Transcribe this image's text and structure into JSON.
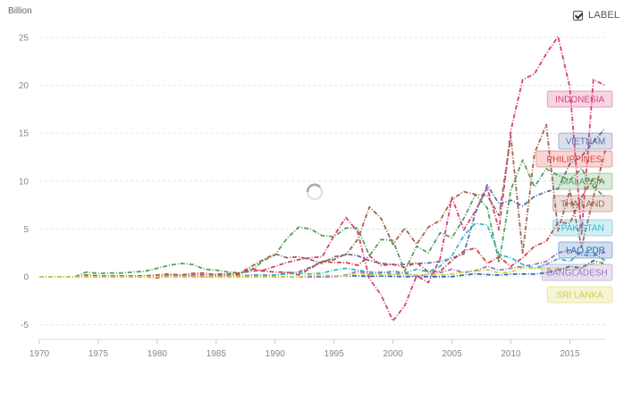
{
  "toggle": {
    "label": "LABEL",
    "checked": true
  },
  "chart_data": {
    "type": "line",
    "ylabel": "Billion",
    "xlim": [
      1970,
      2018
    ],
    "ylim": [
      -5,
      25
    ],
    "xticks": [
      1970,
      1975,
      1980,
      1985,
      1990,
      1995,
      2000,
      2005,
      2010,
      2015
    ],
    "yticks": [
      -5,
      0,
      5,
      10,
      15,
      20,
      25
    ],
    "grid": true,
    "legend": "right-end labels",
    "x": [
      1970,
      1971,
      1972,
      1973,
      1974,
      1975,
      1976,
      1977,
      1978,
      1979,
      1980,
      1981,
      1982,
      1983,
      1984,
      1985,
      1986,
      1987,
      1988,
      1989,
      1990,
      1991,
      1992,
      1993,
      1994,
      1995,
      1996,
      1997,
      1998,
      1999,
      2000,
      2001,
      2002,
      2003,
      2004,
      2005,
      2006,
      2007,
      2008,
      2009,
      2010,
      2011,
      2012,
      2013,
      2014,
      2015,
      2016,
      2017,
      2018
    ],
    "series": [
      {
        "name": "INDONESIA",
        "color": "#d6427e",
        "values": [
          0,
          0,
          0,
          0,
          0,
          0,
          0,
          0,
          0,
          0,
          0,
          0.2,
          0.2,
          0.3,
          0.2,
          0.3,
          0.3,
          0.4,
          0.6,
          0.7,
          1.1,
          1.5,
          1.8,
          2.0,
          2.1,
          4.3,
          6.2,
          4.7,
          -0.2,
          -1.9,
          -4.6,
          -3.0,
          0.1,
          -0.6,
          1.9,
          8.3,
          4.9,
          6.9,
          9.3,
          4.9,
          15.3,
          20.6,
          21.2,
          23.3,
          25.1,
          19.8,
          4.5,
          20.6,
          20.0
        ]
      },
      {
        "name": "VIETNAM",
        "color": "#5b6ea8",
        "values": [
          0,
          0,
          0,
          0,
          0,
          0,
          0,
          0,
          0,
          0,
          0,
          0,
          0,
          0,
          0,
          0,
          0,
          0,
          0.1,
          0.1,
          0.2,
          0.4,
          0.5,
          1.0,
          1.6,
          1.8,
          2.4,
          2.2,
          1.7,
          1.4,
          1.3,
          1.3,
          1.4,
          1.45,
          1.6,
          1.95,
          2.4,
          6.7,
          9.6,
          7.6,
          8.0,
          7.4,
          8.4,
          8.9,
          9.2,
          11.8,
          12.6,
          14.1,
          15.5
        ]
      },
      {
        "name": "PHILIPPINES",
        "color": "#d9443e",
        "values": [
          0,
          0,
          0,
          0,
          0,
          0,
          0,
          0,
          0,
          0,
          -0.1,
          0.2,
          0.1,
          0.1,
          0,
          0.1,
          0.1,
          0.3,
          0.9,
          0.6,
          0.5,
          0.5,
          0.2,
          0.9,
          1.6,
          1.5,
          1.5,
          1.2,
          2.2,
          1.2,
          1.3,
          1.0,
          1.5,
          0.5,
          0.6,
          1.7,
          2.7,
          3.0,
          1.4,
          2.1,
          1.1,
          2.0,
          3.2,
          3.7,
          5.7,
          5.6,
          8.3,
          10.3,
          9.9
        ]
      },
      {
        "name": "MALAYSIA",
        "color": "#55a05c",
        "values": [
          0,
          0,
          0,
          0,
          0.5,
          0.35,
          0.4,
          0.4,
          0.5,
          0.6,
          0.9,
          1.2,
          1.4,
          1.3,
          0.8,
          0.7,
          0.5,
          0.4,
          0.7,
          1.7,
          2.3,
          4.0,
          5.2,
          5.0,
          4.3,
          4.2,
          5.1,
          5.1,
          2.2,
          3.9,
          3.8,
          0.6,
          3.2,
          2.5,
          4.6,
          4.1,
          6.1,
          8.6,
          7.2,
          1.5,
          9.1,
          12.2,
          9.4,
          11.3,
          10.6,
          10.1,
          11.3,
          9.4,
          8.3
        ]
      },
      {
        "name": "THAILAND",
        "color": "#a36650",
        "values": [
          0,
          0,
          0,
          0,
          0.2,
          0.1,
          0.1,
          0.1,
          0.1,
          0.1,
          0.2,
          0.3,
          0.2,
          0.35,
          0.4,
          0.2,
          0.3,
          0.4,
          1.1,
          1.8,
          2.4,
          2.0,
          2.1,
          1.8,
          1.4,
          2.1,
          2.3,
          3.9,
          7.3,
          6.1,
          3.4,
          5.1,
          3.4,
          5.2,
          5.9,
          8.1,
          8.9,
          8.6,
          8.5,
          6.4,
          14.7,
          2.5,
          12.9,
          15.9,
          4.8,
          9.0,
          3.1,
          8.3,
          13.2
        ]
      },
      {
        "name": "PAKISTAN",
        "color": "#38b8cc",
        "values": [
          0,
          0,
          0,
          0,
          0,
          0,
          0,
          0,
          0,
          0,
          0,
          0.1,
          0.1,
          0.1,
          0,
          0.1,
          0.1,
          0.1,
          0.2,
          0.2,
          0.2,
          0.3,
          0.4,
          0.3,
          0.4,
          0.7,
          0.9,
          0.7,
          0.5,
          0.5,
          0.3,
          0.4,
          0.8,
          0.5,
          1.1,
          2.2,
          4.3,
          5.6,
          5.4,
          2.3,
          2.0,
          1.3,
          0.9,
          1.3,
          1.9,
          1.6,
          2.6,
          2.5,
          1.7
        ]
      },
      {
        "name": "LAO PDR",
        "color": "#2b6ab2",
        "values": [
          0,
          0,
          0,
          0,
          0,
          0,
          0,
          0,
          0,
          0,
          0,
          0,
          0,
          0,
          0,
          0,
          0,
          0,
          0,
          0,
          0,
          0,
          0,
          0,
          0,
          0.1,
          0.1,
          0.1,
          0.05,
          0.1,
          0.05,
          0.02,
          0.03,
          0.02,
          0.02,
          0.03,
          0.19,
          0.32,
          0.23,
          0.19,
          0.28,
          0.3,
          0.29,
          0.43,
          0.72,
          1.08,
          0.94,
          1.69,
          1.36
        ]
      },
      {
        "name": "BANGLADESH",
        "color": "#9b77c2",
        "values": [
          0,
          0,
          0,
          0,
          0,
          0,
          0,
          0,
          0,
          0,
          0,
          0,
          0,
          0,
          0,
          0,
          0,
          0,
          0,
          0,
          0,
          0,
          0,
          0,
          0,
          0,
          0.2,
          0.6,
          0.3,
          0.4,
          0.6,
          0.4,
          0.05,
          0.3,
          0.45,
          0.8,
          0.45,
          0.65,
          1.09,
          0.7,
          0.9,
          1.1,
          1.3,
          1.6,
          2.5,
          2.8,
          2.3,
          2.2,
          2.6
        ]
      },
      {
        "name": "SRI LANKA",
        "color": "#d4cf45",
        "values": [
          0,
          0,
          0,
          0,
          0,
          0,
          0,
          0,
          0,
          0,
          0,
          0,
          0,
          0,
          0,
          0,
          0,
          0,
          0,
          0,
          0,
          0,
          0,
          0.2,
          0.2,
          0.1,
          0.1,
          0.4,
          0.2,
          0.2,
          0.2,
          0.2,
          0.2,
          0.2,
          0.2,
          0.3,
          0.5,
          0.6,
          0.75,
          0.4,
          0.5,
          0.96,
          0.9,
          0.9,
          0.9,
          0.7,
          0.9,
          1.4,
          1.6
        ]
      }
    ]
  }
}
